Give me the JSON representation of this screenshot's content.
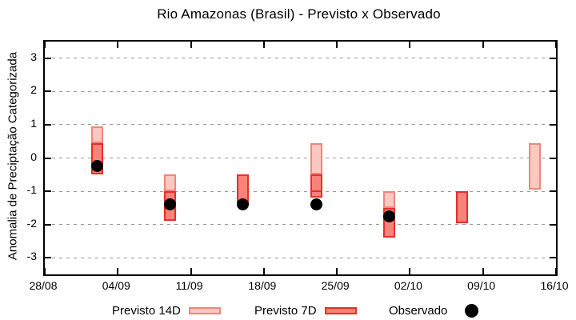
{
  "title": "Rio Amazonas (Brasil) - Previsto x Observado",
  "y_axis": {
    "label": "Anomalia de Preciptação Categorizada",
    "ticks": [
      3,
      2,
      1,
      0,
      -1,
      -2,
      -3
    ],
    "range": [
      -3.5,
      3.5
    ]
  },
  "x_axis": {
    "ticks": [
      {
        "label": "28/08",
        "day": 0
      },
      {
        "label": "04/09",
        "day": 7
      },
      {
        "label": "11/09",
        "day": 14
      },
      {
        "label": "18/09",
        "day": 21
      },
      {
        "label": "25/09",
        "day": 28
      },
      {
        "label": "02/10",
        "day": 35
      },
      {
        "label": "09/10",
        "day": 42
      },
      {
        "label": "16/10",
        "day": 49
      }
    ],
    "range_days": [
      0,
      49
    ]
  },
  "legend": {
    "previsto_14d_label": "Previsto 14D",
    "previsto_7d_label": "Previsto 7D",
    "observado_label": "Observado"
  },
  "colors": {
    "p14_fill": "#f9c9c1",
    "p14_border": "#ef8579",
    "p7_fill": "#f9837a",
    "p7_border": "#e62e28",
    "observed": "#000000",
    "grid": "#999999",
    "axis": "#000000"
  },
  "chart_data": {
    "type": "bar",
    "subtype": "ranged forecast boxes + observed scatter",
    "title": "Rio Amazonas (Brasil) - Previsto x Observado",
    "ylabel": "Anomalia de Preciptação Categorizada",
    "ylim": [
      -3.5,
      3.5
    ],
    "grid": "dashed horizontal",
    "legend_position": "below plot",
    "bars": [
      {
        "date": "02/09",
        "day": 5,
        "previsto_14d": [
          0.45,
          0.95
        ],
        "previsto_7d": [
          -0.5,
          0.45
        ],
        "observado": -0.25,
        "p7_divider": null
      },
      {
        "date": "09/09",
        "day": 12,
        "previsto_14d": [
          -1.0,
          -0.5
        ],
        "previsto_7d": [
          -1.9,
          -1.0
        ],
        "observado": -1.4,
        "p7_divider": null
      },
      {
        "date": "16/09",
        "day": 19,
        "previsto_14d": null,
        "previsto_7d": [
          -1.4,
          -0.5
        ],
        "observado": -1.4,
        "p7_divider": null
      },
      {
        "date": "23/09",
        "day": 26,
        "previsto_14d": [
          -0.5,
          0.45
        ],
        "previsto_7d": [
          -1.2,
          -0.5
        ],
        "observado": -1.4,
        "p7_divider": -1.0
      },
      {
        "date": "30/09",
        "day": 33,
        "previsto_14d": [
          -1.5,
          -1.0
        ],
        "previsto_7d": [
          -2.4,
          -1.5
        ],
        "observado": -1.75,
        "p7_divider": null
      },
      {
        "date": "07/10",
        "day": 40,
        "previsto_14d": null,
        "previsto_7d": [
          -1.95,
          -1.0
        ],
        "observado": null,
        "p7_divider": null
      },
      {
        "date": "14/10",
        "day": 47,
        "previsto_14d": [
          -0.95,
          0.45
        ],
        "previsto_7d": null,
        "observado": null,
        "p7_divider": null
      }
    ]
  }
}
